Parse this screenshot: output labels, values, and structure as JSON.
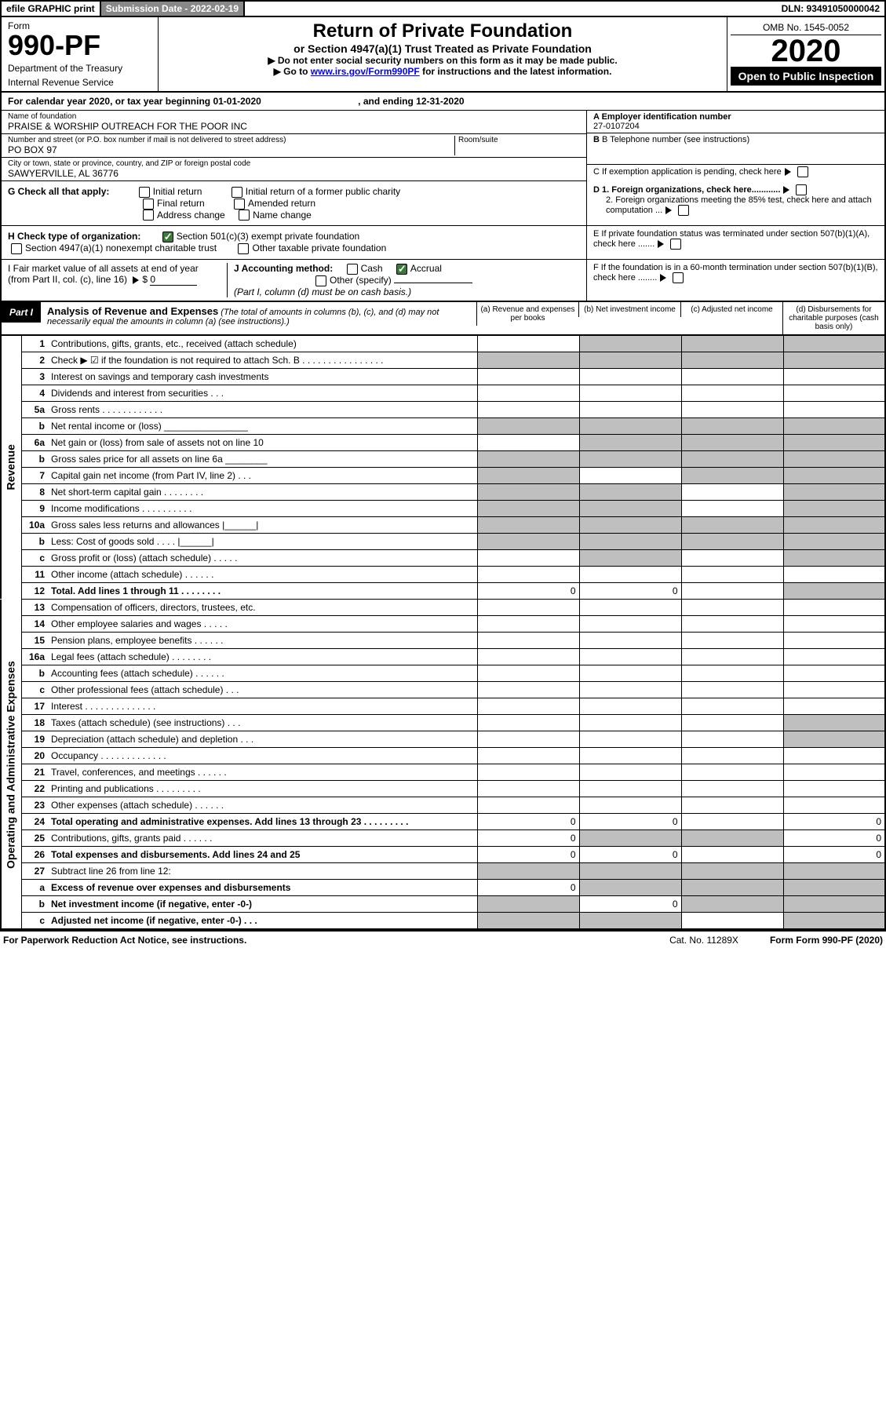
{
  "topbar": {
    "efile": "efile GRAPHIC print",
    "subdate": "Submission Date - 2022-02-19",
    "dln": "DLN: 93491050000042"
  },
  "hdr": {
    "form": "Form",
    "formno": "990-PF",
    "dept": "Department of the Treasury",
    "irs": "Internal Revenue Service",
    "title": "Return of Private Foundation",
    "sub": "or Section 4947(a)(1) Trust Treated as Private Foundation",
    "note1": "▶ Do not enter social security numbers on this form as it may be made public.",
    "note2a": "▶ Go to ",
    "note2link": "www.irs.gov/Form990PF",
    "note2b": " for instructions and the latest information.",
    "omb": "OMB No. 1545-0052",
    "year": "2020",
    "open": "Open to Public Inspection"
  },
  "cal": {
    "a": "For calendar year 2020, or tax year beginning 01-01-2020",
    "b": ", and ending 12-31-2020"
  },
  "id": {
    "name_lbl": "Name of foundation",
    "name": "PRAISE & WORSHIP OUTREACH FOR THE POOR INC",
    "addr_lbl": "Number and street (or P.O. box number if mail is not delivered to street address)",
    "addr": "PO BOX 97",
    "room_lbl": "Room/suite",
    "city_lbl": "City or town, state or province, country, and ZIP or foreign postal code",
    "city": "SAWYERVILLE, AL  36776",
    "a_lbl": "A Employer identification number",
    "a": "27-0107204",
    "b_lbl": "B Telephone number (see instructions)",
    "b": "",
    "c": "C  If exemption application is pending, check here",
    "d1": "D 1. Foreign organizations, check here............",
    "d2": "2. Foreign organizations meeting the 85% test, check here and attach computation ...",
    "e": "E  If private foundation status was terminated under section 507(b)(1)(A), check here .......",
    "f": "F  If the foundation is in a 60-month termination under section 507(b)(1)(B), check here ........"
  },
  "g": {
    "lbl": "G Check all that apply:",
    "o": [
      "Initial return",
      "Initial return of a former public charity",
      "Final return",
      "Amended return",
      "Address change",
      "Name change"
    ]
  },
  "h": {
    "lbl": "H Check type of organization:",
    "o1": "Section 501(c)(3) exempt private foundation",
    "o2": "Section 4947(a)(1) nonexempt charitable trust",
    "o3": "Other taxable private foundation"
  },
  "i": {
    "lbl": "I Fair market value of all assets at end of year (from Part II, col. (c), line 16)",
    "val": "0"
  },
  "j": {
    "lbl": "J Accounting method:",
    "o": [
      "Cash",
      "Accrual",
      "Other (specify)"
    ],
    "note": "(Part I, column (d) must be on cash basis.)"
  },
  "part1": {
    "lbl": "Part I",
    "t": "Analysis of Revenue and Expenses",
    "sub": "(The total of amounts in columns (b), (c), and (d) may not necessarily equal the amounts in column (a) (see instructions).)",
    "ca": "(a)   Revenue and expenses per books",
    "cb": "(b)   Net investment income",
    "cc": "(c)   Adjusted net income",
    "cd": "(d)   Disbursements for charitable purposes (cash basis only)"
  },
  "side": {
    "rev": "Revenue",
    "op": "Operating and Administrative Expenses"
  },
  "rows": [
    {
      "n": "1",
      "d": "Contributions, gifts, grants, etc., received (attach schedule)",
      "sh": [
        "b",
        "c",
        "d"
      ]
    },
    {
      "n": "2",
      "d": "Check ▶ ☑ if the foundation is not required to attach Sch. B    .  .  .  .  .  .  .  .  .  .  .  .  .  .  .  .",
      "sh": [
        "a",
        "b",
        "c",
        "d"
      ]
    },
    {
      "n": "3",
      "d": "Interest on savings and temporary cash investments"
    },
    {
      "n": "4",
      "d": "Dividends and interest from securities    .  .  ."
    },
    {
      "n": "5a",
      "d": "Gross rents    .  .  .  .  .  .  .  .  .  .  .  ."
    },
    {
      "n": "b",
      "d": "Net rental income or (loss) ________________",
      "sh": [
        "a",
        "b",
        "c",
        "d"
      ]
    },
    {
      "n": "6a",
      "d": "Net gain or (loss) from sale of assets not on line 10",
      "sh": [
        "b",
        "c",
        "d"
      ]
    },
    {
      "n": "b",
      "d": "Gross sales price for all assets on line 6a ________",
      "sh": [
        "a",
        "b",
        "c",
        "d"
      ]
    },
    {
      "n": "7",
      "d": "Capital gain net income (from Part IV, line 2)    .  .  .",
      "sh": [
        "a",
        "c",
        "d"
      ]
    },
    {
      "n": "8",
      "d": "Net short-term capital gain   .  .  .  .  .  .  .  .",
      "sh": [
        "a",
        "b",
        "d"
      ]
    },
    {
      "n": "9",
      "d": "Income modifications  .  .  .  .  .  .  .  .  .  .",
      "sh": [
        "a",
        "b",
        "d"
      ]
    },
    {
      "n": "10a",
      "d": "Gross sales less returns and allowances  |______|",
      "sh": [
        "a",
        "b",
        "c",
        "d"
      ]
    },
    {
      "n": "b",
      "d": "Less: Cost of goods sold    .  .  .  .  |______|",
      "sh": [
        "a",
        "b",
        "c",
        "d"
      ]
    },
    {
      "n": "c",
      "d": "Gross profit or (loss) (attach schedule)    .  .  .  .  .",
      "sh": [
        "b",
        "d"
      ]
    },
    {
      "n": "11",
      "d": "Other income (attach schedule)    .  .  .  .  .  ."
    },
    {
      "n": "12",
      "d": "Total. Add lines 1 through 11    .  .  .  .  .  .  .  .",
      "b": true,
      "a": "0",
      "vb": "0",
      "sh": [
        "d"
      ]
    }
  ],
  "rows2": [
    {
      "n": "13",
      "d": "Compensation of officers, directors, trustees, etc."
    },
    {
      "n": "14",
      "d": "Other employee salaries and wages    .  .  .  .  ."
    },
    {
      "n": "15",
      "d": "Pension plans, employee benefits   .  .  .  .  .  ."
    },
    {
      "n": "16a",
      "d": "Legal fees (attach schedule)  .  .  .  .  .  .  .  ."
    },
    {
      "n": "b",
      "d": "Accounting fees (attach schedule)   .  .  .  .  .  ."
    },
    {
      "n": "c",
      "d": "Other professional fees (attach schedule)    .  .  ."
    },
    {
      "n": "17",
      "d": "Interest  .  .  .  .  .  .  .  .  .  .  .  .  .  ."
    },
    {
      "n": "18",
      "d": "Taxes (attach schedule) (see instructions)    .  .  .",
      "sh": [
        "d"
      ]
    },
    {
      "n": "19",
      "d": "Depreciation (attach schedule) and depletion    .  .  .",
      "sh": [
        "d"
      ]
    },
    {
      "n": "20",
      "d": "Occupancy  .  .  .  .  .  .  .  .  .  .  .  .  ."
    },
    {
      "n": "21",
      "d": "Travel, conferences, and meetings   .  .  .  .  .  ."
    },
    {
      "n": "22",
      "d": "Printing and publications  .  .  .  .  .  .  .  .  ."
    },
    {
      "n": "23",
      "d": "Other expenses (attach schedule)   .  .  .  .  .  ."
    },
    {
      "n": "24",
      "d": "Total operating and administrative expenses. Add lines 13 through 23    .  .  .  .  .  .  .  .  .",
      "b": true,
      "a": "0",
      "vb": "0",
      "vd": "0"
    },
    {
      "n": "25",
      "d": "Contributions, gifts, grants paid    .  .  .  .  .  .",
      "a": "0",
      "sh": [
        "b",
        "c"
      ],
      "vd": "0"
    },
    {
      "n": "26",
      "d": "Total expenses and disbursements. Add lines 24 and 25",
      "b": true,
      "a": "0",
      "vb": "0",
      "vd": "0"
    },
    {
      "n": "27",
      "d": "Subtract line 26 from line 12:",
      "sh": [
        "a",
        "b",
        "c",
        "d"
      ]
    },
    {
      "n": "a",
      "d": "Excess of revenue over expenses and disbursements",
      "b": true,
      "a": "0",
      "sh": [
        "b",
        "c",
        "d"
      ]
    },
    {
      "n": "b",
      "d": "Net investment income (if negative, enter -0-)",
      "b": true,
      "sh": [
        "a",
        "c",
        "d"
      ],
      "vb": "0"
    },
    {
      "n": "c",
      "d": "Adjusted net income (if negative, enter -0-)   .  .  .",
      "b": true,
      "sh": [
        "a",
        "b",
        "d"
      ]
    }
  ],
  "foot": {
    "l": "For Paperwork Reduction Act Notice, see instructions.",
    "c": "Cat. No. 11289X",
    "r": "Form 990-PF (2020)"
  }
}
